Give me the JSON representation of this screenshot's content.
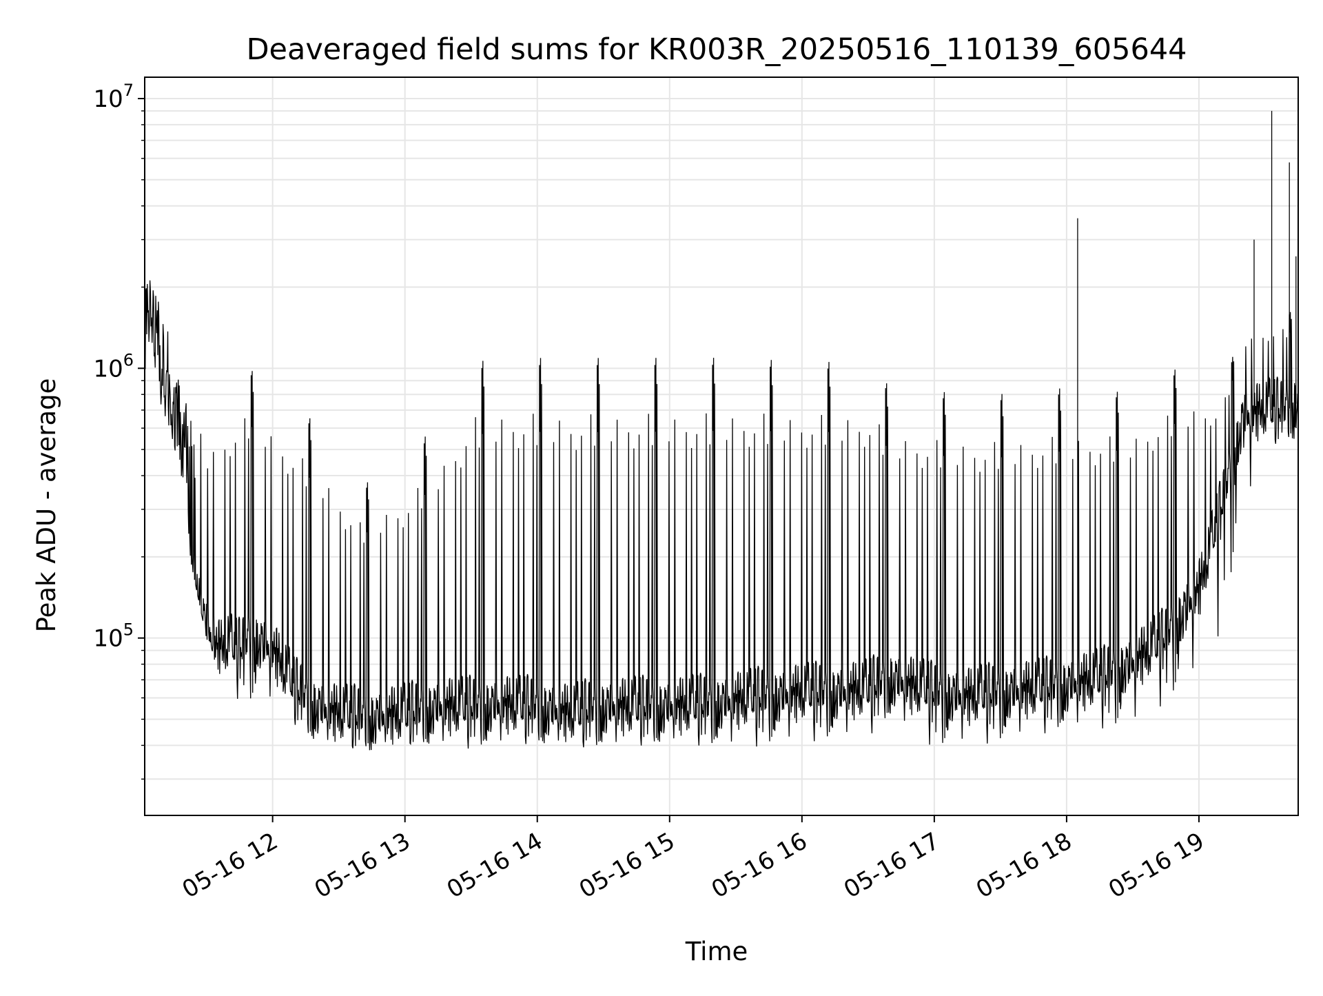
{
  "chart_data": {
    "type": "line",
    "title": "Deaveraged field sums for KR003R_20250516_110139_605644",
    "xlabel": "Time",
    "ylabel": "Peak ADU - average",
    "x_axis": "time",
    "xlim": [
      "2025-05-16 11:02",
      "2025-05-16 19:45"
    ],
    "x_ticks": [
      {
        "value": "2025-05-16 12:00",
        "label": "05-16 12"
      },
      {
        "value": "2025-05-16 13:00",
        "label": "05-16 13"
      },
      {
        "value": "2025-05-16 14:00",
        "label": "05-16 14"
      },
      {
        "value": "2025-05-16 15:00",
        "label": "05-16 15"
      },
      {
        "value": "2025-05-16 16:00",
        "label": "05-16 16"
      },
      {
        "value": "2025-05-16 17:00",
        "label": "05-16 17"
      },
      {
        "value": "2025-05-16 18:00",
        "label": "05-16 18"
      },
      {
        "value": "2025-05-16 19:00",
        "label": "05-16 19"
      }
    ],
    "y_scale": "log",
    "ylim": [
      22000,
      12000000
    ],
    "y_ticks": [
      {
        "value": 100000,
        "base": "10",
        "exp": "5"
      },
      {
        "value": 1000000,
        "base": "10",
        "exp": "6"
      },
      {
        "value": 10000000,
        "base": "10",
        "exp": "7"
      }
    ],
    "grid": true,
    "line_color": "#000000",
    "grid_color": "#e6e6e6",
    "series": [
      {
        "x": [
          "2025-05-16 11:02",
          "2025-05-16 11:05",
          "2025-05-16 11:10",
          "2025-05-16 11:15",
          "2025-05-16 11:20",
          "2025-05-16 11:25",
          "2025-05-16 11:30",
          "2025-05-16 11:35",
          "2025-05-16 11:40",
          "2025-05-16 11:45",
          "2025-05-16 11:50",
          "2025-05-16 11:55",
          "2025-05-16 12:00",
          "2025-05-16 12:10",
          "2025-05-16 12:20",
          "2025-05-16 12:30",
          "2025-05-16 12:45",
          "2025-05-16 13:00",
          "2025-05-16 13:15",
          "2025-05-16 13:30",
          "2025-05-16 13:45",
          "2025-05-16 14:00",
          "2025-05-16 14:15",
          "2025-05-16 14:30",
          "2025-05-16 14:45",
          "2025-05-16 15:00",
          "2025-05-16 15:15",
          "2025-05-16 15:30",
          "2025-05-16 15:45",
          "2025-05-16 16:00",
          "2025-05-16 16:15",
          "2025-05-16 16:30",
          "2025-05-16 16:40",
          "2025-05-16 17:00",
          "2025-05-16 17:15",
          "2025-05-16 17:30",
          "2025-05-16 17:45",
          "2025-05-16 18:00",
          "2025-05-16 18:15",
          "2025-05-16 18:30",
          "2025-05-16 18:45",
          "2025-05-16 19:00",
          "2025-05-16 19:10",
          "2025-05-16 19:20",
          "2025-05-16 19:30",
          "2025-05-16 19:40",
          "2025-05-16 19:45"
        ],
        "y": [
          1500000,
          1700000,
          900000,
          650000,
          500000,
          140000,
          110000,
          90000,
          95000,
          90000,
          100000,
          95000,
          90000,
          65000,
          55000,
          52000,
          50000,
          52000,
          55000,
          55000,
          56000,
          55000,
          52000,
          55000,
          55000,
          55000,
          56000,
          58000,
          60000,
          62000,
          62000,
          64000,
          70000,
          62000,
          60000,
          62000,
          64000,
          66000,
          70000,
          80000,
          100000,
          150000,
          300000,
          650000,
          700000,
          700000,
          750000
        ]
      }
    ],
    "lower_envelope": {
      "x": [
        "2025-05-16 11:02",
        "2025-05-16 11:10",
        "2025-05-16 11:20",
        "2025-05-16 11:30",
        "2025-05-16 11:40",
        "2025-05-16 11:50",
        "2025-05-16 12:00",
        "2025-05-16 12:20",
        "2025-05-16 12:40",
        "2025-05-16 13:00",
        "2025-05-16 13:30",
        "2025-05-16 14:00",
        "2025-05-16 14:30",
        "2025-05-16 15:00",
        "2025-05-16 15:30",
        "2025-05-16 16:00",
        "2025-05-16 16:30",
        "2025-05-16 16:40",
        "2025-05-16 17:00",
        "2025-05-16 17:30",
        "2025-05-16 18:00",
        "2025-05-16 18:30",
        "2025-05-16 18:50",
        "2025-05-16 19:00",
        "2025-05-16 19:10",
        "2025-05-16 19:20",
        "2025-05-16 19:30",
        "2025-05-16 19:45"
      ],
      "y": [
        1000000,
        700000,
        250000,
        100000,
        60000,
        55000,
        55000,
        40000,
        38000,
        40000,
        38000,
        40000,
        38000,
        40000,
        38000,
        40000,
        42000,
        50000,
        38000,
        40000,
        45000,
        45000,
        60000,
        70000,
        100000,
        250000,
        500000,
        550000
      ]
    },
    "upper_envelope": {
      "x": [
        "2025-05-16 11:02",
        "2025-05-16 11:10",
        "2025-05-16 11:20",
        "2025-05-16 11:30",
        "2025-05-16 11:40",
        "2025-05-16 11:50",
        "2025-05-16 12:00",
        "2025-05-16 12:20",
        "2025-05-16 12:40",
        "2025-05-16 13:00",
        "2025-05-16 13:20",
        "2025-05-16 13:30",
        "2025-05-16 13:45",
        "2025-05-16 14:00",
        "2025-05-16 14:30",
        "2025-05-16 15:00",
        "2025-05-16 15:30",
        "2025-05-16 16:00",
        "2025-05-16 16:30",
        "2025-05-16 16:40",
        "2025-05-16 17:00",
        "2025-05-16 17:30",
        "2025-05-16 18:00",
        "2025-05-16 18:30",
        "2025-05-16 18:50",
        "2025-05-16 19:00",
        "2025-05-16 19:10",
        "2025-05-16 19:20",
        "2025-05-16 19:30",
        "2025-05-16 19:45"
      ],
      "y": [
        2300000,
        1800000,
        800000,
        700000,
        900000,
        1100000,
        900000,
        700000,
        400000,
        500000,
        800000,
        1200000,
        1250000,
        1250000,
        1250000,
        1250000,
        1250000,
        1200000,
        1200000,
        950000,
        920000,
        900000,
        950000,
        900000,
        1100000,
        1050000,
        850000,
        1500000,
        1600000,
        1700000
      ]
    },
    "spikes": [
      {
        "x": "2025-05-16 18:05",
        "y": 3600000
      },
      {
        "x": "2025-05-16 19:25",
        "y": 3000000
      },
      {
        "x": "2025-05-16 19:33",
        "y": 9000000
      },
      {
        "x": "2025-05-16 19:41",
        "y": 5800000
      },
      {
        "x": "2025-05-16 19:44",
        "y": 2600000
      }
    ]
  }
}
